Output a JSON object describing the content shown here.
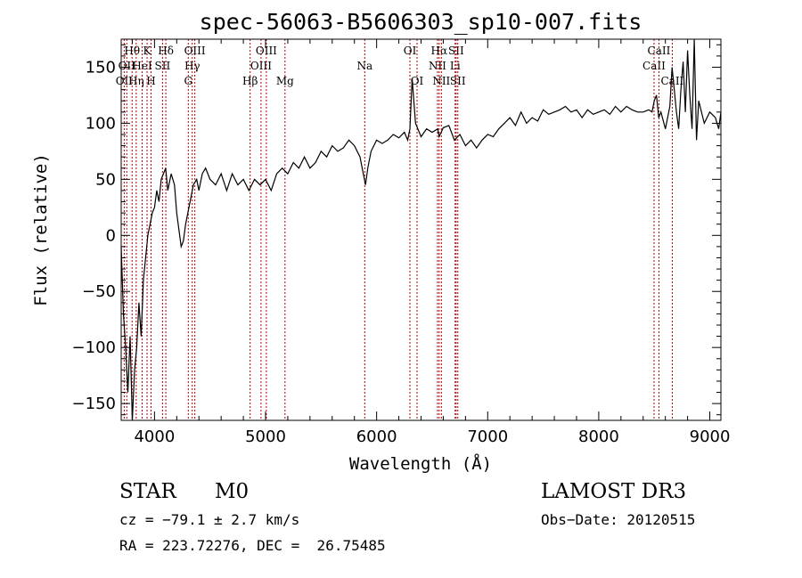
{
  "chart_data": {
    "type": "line",
    "title": "spec-56063-B5606303_sp10-007.fits",
    "xlabel": "Wavelength (Å)",
    "ylabel": "Flux (relative)",
    "xlim": [
      3700,
      9100
    ],
    "ylim": [
      -165,
      175
    ],
    "xticks": [
      4000,
      5000,
      6000,
      7000,
      8000,
      9000
    ],
    "yticks": [
      -150,
      -100,
      -50,
      0,
      50,
      100,
      150
    ],
    "grid": false,
    "series": [
      {
        "x": [
          3700,
          3720,
          3740,
          3760,
          3780,
          3800,
          3820,
          3840,
          3860,
          3880,
          3900,
          3920,
          3940,
          3960,
          3980,
          4000,
          4020,
          4040,
          4060,
          4080,
          4100,
          4120,
          4150,
          4180,
          4200,
          4220,
          4240,
          4260,
          4280,
          4300,
          4320,
          4350,
          4380,
          4400,
          4430,
          4460,
          4500,
          4550,
          4600,
          4650,
          4700,
          4750,
          4800,
          4850,
          4900,
          4950,
          5000,
          5050,
          5100,
          5150,
          5200,
          5250,
          5300,
          5350,
          5400,
          5450,
          5500,
          5550,
          5600,
          5650,
          5700,
          5750,
          5800,
          5850,
          5880,
          5900,
          5920,
          5950,
          6000,
          6050,
          6100,
          6150,
          6200,
          6250,
          6280,
          6300,
          6320,
          6350,
          6400,
          6450,
          6500,
          6550,
          6563,
          6600,
          6650,
          6700,
          6750,
          6800,
          6850,
          6900,
          6950,
          7000,
          7050,
          7100,
          7150,
          7200,
          7250,
          7300,
          7350,
          7400,
          7450,
          7500,
          7550,
          7600,
          7650,
          7700,
          7750,
          7800,
          7850,
          7900,
          7950,
          8000,
          8050,
          8100,
          8150,
          8200,
          8250,
          8300,
          8350,
          8400,
          8450,
          8480,
          8500,
          8520,
          8540,
          8560,
          8600,
          8640,
          8660,
          8700,
          8720,
          8740,
          8760,
          8780,
          8800,
          8820,
          8840,
          8860,
          8880,
          8900,
          8950,
          9000,
          9050,
          9080,
          9100
        ],
        "y": [
          -10,
          -70,
          -100,
          -140,
          -90,
          -165,
          -120,
          -100,
          -60,
          -90,
          -40,
          -20,
          0,
          10,
          20,
          25,
          40,
          30,
          50,
          55,
          60,
          40,
          55,
          45,
          20,
          5,
          -10,
          -5,
          10,
          20,
          30,
          45,
          50,
          40,
          55,
          60,
          50,
          45,
          55,
          40,
          55,
          45,
          50,
          40,
          50,
          45,
          50,
          40,
          55,
          60,
          55,
          65,
          60,
          70,
          60,
          65,
          75,
          70,
          80,
          75,
          78,
          85,
          80,
          70,
          55,
          45,
          60,
          75,
          85,
          82,
          85,
          90,
          87,
          92,
          85,
          95,
          140,
          100,
          88,
          95,
          92,
          95,
          88,
          96,
          98,
          85,
          90,
          80,
          85,
          78,
          85,
          90,
          88,
          95,
          100,
          105,
          98,
          110,
          100,
          105,
          102,
          112,
          108,
          110,
          112,
          115,
          110,
          112,
          105,
          112,
          108,
          110,
          112,
          108,
          115,
          110,
          115,
          112,
          110,
          110,
          112,
          110,
          120,
          125,
          105,
          110,
          95,
          115,
          150,
          110,
          95,
          130,
          155,
          110,
          165,
          125,
          95,
          175,
          85,
          120,
          100,
          110,
          105,
          95,
          110
        ],
        "name": ""
      }
    ],
    "lines": [
      {
        "x": 3727,
        "labels": [
          "OII"
        ],
        "row": 3
      },
      {
        "x": 3750,
        "labels": [
          "OII"
        ],
        "row": 2
      },
      {
        "x": 3798,
        "labels": [
          "Hθ"
        ],
        "row": 1
      },
      {
        "x": 3835,
        "labels": [
          "Hη"
        ],
        "row": 3
      },
      {
        "x": 3889,
        "labels": [
          "HeI"
        ],
        "row": 2
      },
      {
        "x": 3933,
        "labels": [
          "K"
        ],
        "row": 1
      },
      {
        "x": 3969,
        "labels": [
          "H"
        ],
        "row": 3
      },
      {
        "x": 4072,
        "labels": [
          "SII"
        ],
        "row": 2
      },
      {
        "x": 4102,
        "labels": [
          "Hδ"
        ],
        "row": 1
      },
      {
        "x": 4304,
        "labels": [
          "G"
        ],
        "row": 3
      },
      {
        "x": 4340,
        "labels": [
          "Hγ"
        ],
        "row": 2
      },
      {
        "x": 4363,
        "labels": [
          "OIII"
        ],
        "row": 1
      },
      {
        "x": 4861,
        "labels": [
          "Hβ"
        ],
        "row": 3
      },
      {
        "x": 4959,
        "labels": [
          "OIII"
        ],
        "row": 2
      },
      {
        "x": 5007,
        "labels": [
          "OIII"
        ],
        "row": 1
      },
      {
        "x": 5175,
        "labels": [
          "Mg"
        ],
        "row": 3
      },
      {
        "x": 5893,
        "labels": [
          "Na"
        ],
        "row": 2
      },
      {
        "x": 6300,
        "labels": [
          "OI"
        ],
        "row": 1
      },
      {
        "x": 6364,
        "labels": [
          "OI"
        ],
        "row": 3
      },
      {
        "x": 6548,
        "labels": [
          "NII"
        ],
        "row": 2
      },
      {
        "x": 6563,
        "labels": [
          "Hα"
        ],
        "row": 1
      },
      {
        "x": 6583,
        "labels": [
          "NII"
        ],
        "row": 3
      },
      {
        "x": 6707,
        "labels": [
          "Li"
        ],
        "row": 2
      },
      {
        "x": 6716,
        "labels": [
          "SII"
        ],
        "row": 1
      },
      {
        "x": 6731,
        "labels": [
          "SII"
        ],
        "row": 3
      },
      {
        "x": 8498,
        "labels": [
          "CaII"
        ],
        "row": 2
      },
      {
        "x": 8542,
        "labels": [
          "CaII"
        ],
        "row": 1
      },
      {
        "x": 8662,
        "labels": [
          "CaII"
        ],
        "row": 3
      }
    ]
  },
  "info": {
    "class": "STAR",
    "subclass": "M0",
    "survey": "LAMOST DR3",
    "cz": "cz = −79.1 ± 2.7 km/s",
    "obs_date": "Obs−Date: 20120515",
    "radec": "RA = 223.72276, DEC =  26.75485"
  }
}
